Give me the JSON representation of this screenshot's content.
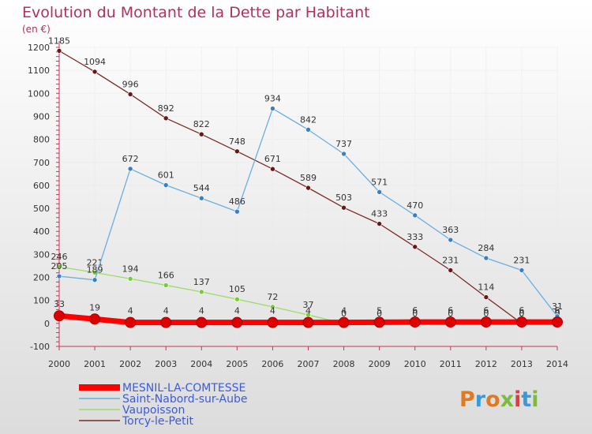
{
  "title": "Evolution du Montant de la Dette par Habitant",
  "unit": "(en €)",
  "brand": "Proxiti",
  "colors": {
    "title": "#b03060",
    "unit": "#b03060",
    "legend_text": "#3b5bdb",
    "background_top": "#ffffff",
    "background_bottom": "#dcdcdc"
  },
  "chart_data": {
    "type": "line",
    "x": [
      2000,
      2001,
      2002,
      2003,
      2004,
      2005,
      2006,
      2007,
      2008,
      2009,
      2010,
      2011,
      2012,
      2013,
      2014
    ],
    "ylim": [
      -100,
      1200
    ],
    "yticks": [
      -100,
      0,
      100,
      200,
      300,
      400,
      500,
      600,
      700,
      800,
      900,
      1000,
      1100,
      1200
    ],
    "grid": true,
    "legend_position": "bottom-left",
    "series": [
      {
        "name": "MESNIL-LA-COMTESSE",
        "color": "#ff0000",
        "marker_color": "#dd0000",
        "thick": true,
        "values": [
          33,
          19,
          4,
          4,
          4,
          4,
          4,
          4,
          4,
          5,
          6,
          6,
          6,
          6,
          6
        ],
        "labels": [
          "33",
          "19",
          "4",
          "4",
          "4",
          "4",
          "4",
          "4",
          "4",
          "5",
          "6",
          "6",
          "6",
          "6",
          "6"
        ]
      },
      {
        "name": "Saint-Nabord-sur-Aube",
        "color": "#6aaee0",
        "marker_color": "#3a7fc0",
        "thick": false,
        "values": [
          205,
          189,
          672,
          601,
          544,
          486,
          934,
          842,
          737,
          571,
          470,
          363,
          284,
          231,
          31
        ],
        "labels": [
          "205",
          "189",
          "672",
          "601",
          "544",
          "486",
          "934",
          "842",
          "737",
          "571",
          "470",
          "363",
          "284",
          "231",
          "31"
        ]
      },
      {
        "name": "Vaupoisson",
        "color": "#99dd66",
        "marker_color": "#77cc33",
        "thick": false,
        "values": [
          246,
          221,
          194,
          166,
          137,
          105,
          72,
          37,
          0,
          0,
          0,
          0,
          0,
          0,
          0
        ],
        "labels": [
          "246",
          "221",
          "194",
          "166",
          "137",
          "105",
          "72",
          "37",
          "0",
          "0",
          "0",
          "0",
          "0",
          "0",
          "0"
        ]
      },
      {
        "name": "Torcy-le-Petit",
        "color": "#7a2a2a",
        "marker_color": "#661818",
        "thick": false,
        "values": [
          1185,
          1094,
          996,
          892,
          822,
          748,
          671,
          589,
          503,
          433,
          333,
          231,
          114,
          0,
          0
        ],
        "labels": [
          "1185",
          "1094",
          "996",
          "892",
          "822",
          "748",
          "671",
          "589",
          "503",
          "433",
          "333",
          "231",
          "114",
          "0",
          "0"
        ]
      }
    ]
  }
}
